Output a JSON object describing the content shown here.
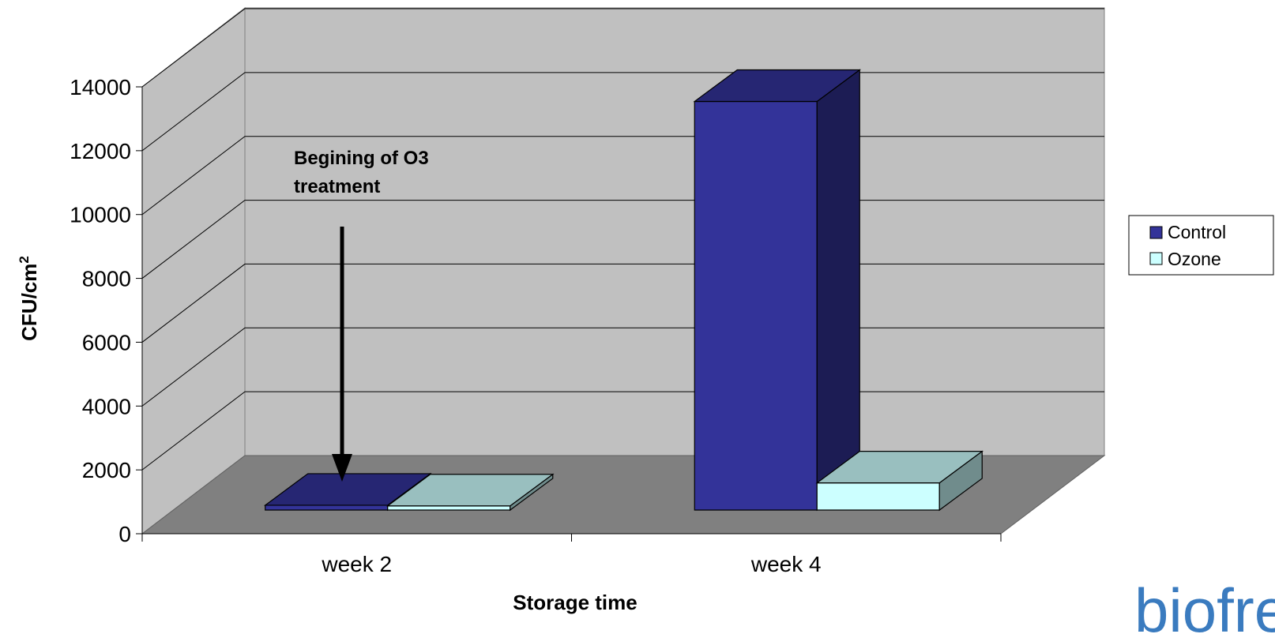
{
  "chart_data": {
    "type": "bar",
    "title": "",
    "xlabel": "Storage time",
    "ylabel": "CFU/cm",
    "ylabel_superscript": "2",
    "categories": [
      "week 2",
      "week 4"
    ],
    "ylim": [
      0,
      14000
    ],
    "yticks": [
      "0",
      "2000",
      "4000",
      "6000",
      "8000",
      "10000",
      "12000",
      "14000"
    ],
    "series": [
      {
        "name": "Control",
        "values": [
          150,
          12800
        ],
        "color": "#333399"
      },
      {
        "name": "Ozone",
        "values": [
          130,
          850
        ],
        "color": "#ccffff"
      }
    ],
    "grid": true,
    "legend_position": "right",
    "annotation": {
      "line1": "Begining of O3",
      "line2": "treatment"
    }
  },
  "logo": {
    "text": "biofresh"
  }
}
